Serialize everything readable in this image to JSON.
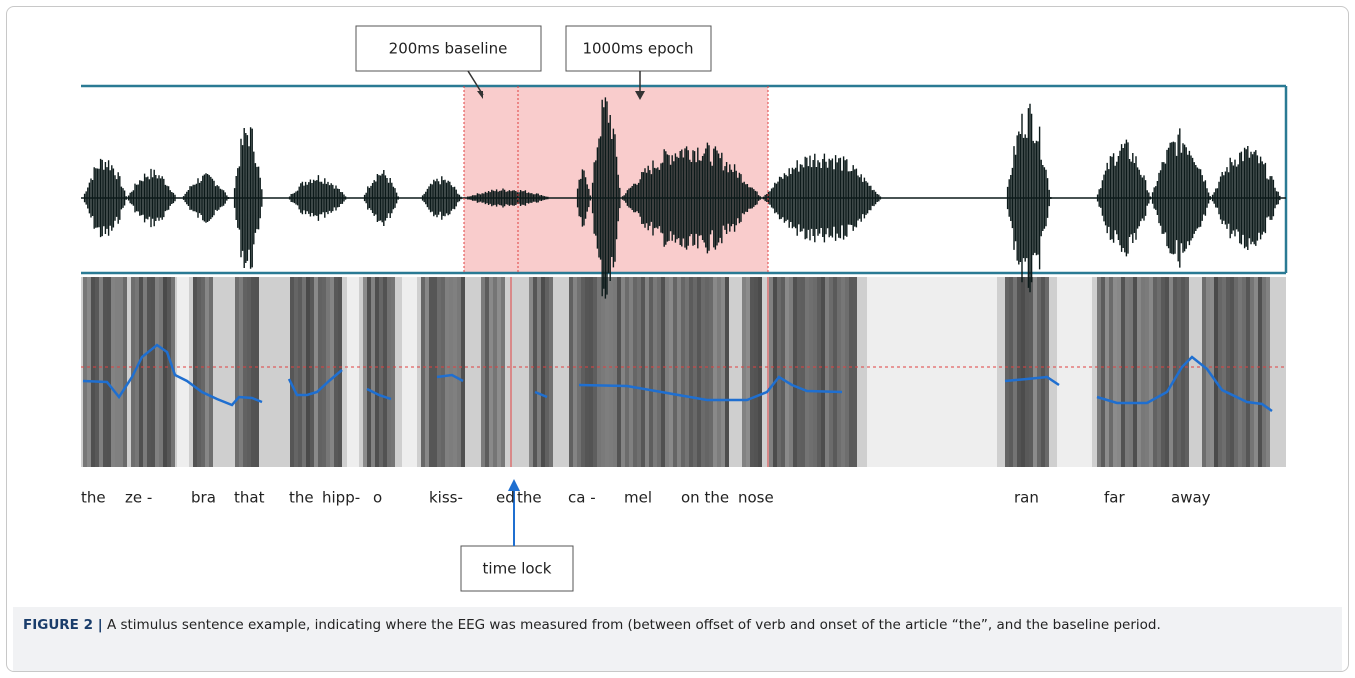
{
  "figure": {
    "labels": {
      "baseline": "200ms baseline",
      "epoch": "1000ms epoch",
      "time_lock": "time lock"
    },
    "words": [
      "the",
      "ze -",
      "bra",
      "that",
      "the",
      "hipp-",
      "o",
      "kiss-",
      "ed",
      "the",
      "ca -",
      "mel",
      "on the",
      "nose",
      "ran",
      "far",
      "away"
    ],
    "caption": {
      "label": "FIGURE 2 |",
      "text": "A stimulus sentence example, indicating where the EEG was measured from (between offset of verb and onset of the article “the”, and the baseline period."
    }
  }
}
